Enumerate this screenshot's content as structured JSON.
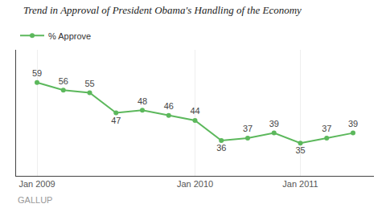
{
  "chart_data": {
    "type": "line",
    "title": "Trend in Approval of President Obama's Handling of the Economy",
    "categories": [
      "Jan 2009",
      null,
      null,
      null,
      null,
      null,
      "Jan 2010",
      null,
      null,
      null,
      "Jan 2011",
      null,
      null
    ],
    "series": [
      {
        "name": "% Approve",
        "color": "#5cb85c",
        "values": [
          59,
          56,
          55,
          47,
          48,
          46,
          44,
          36,
          37,
          39,
          35,
          37,
          39
        ]
      }
    ],
    "ylim": [
      22,
      72
    ],
    "yticks": [],
    "tick_labels": "x",
    "grid": true,
    "legend": "upper left",
    "data_labels": true,
    "marker": "circle",
    "annotations": [
      "GALLUP"
    ]
  }
}
